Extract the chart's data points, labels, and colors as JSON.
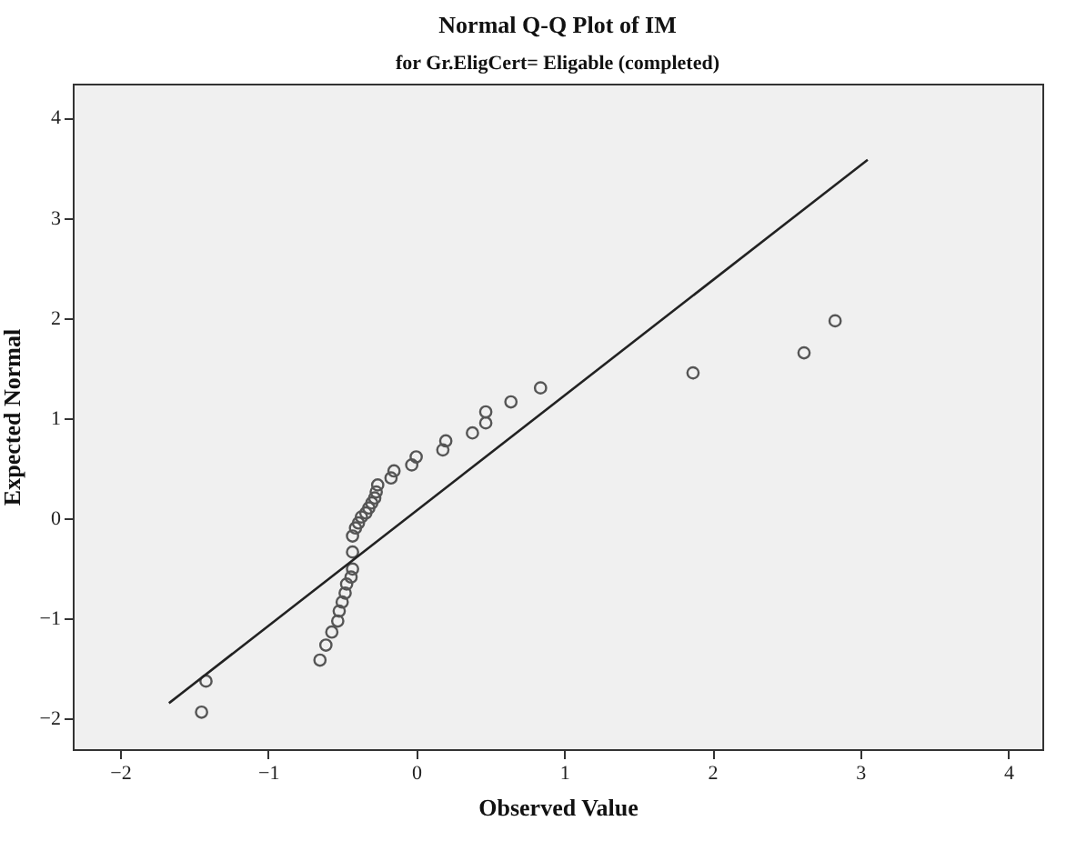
{
  "chart_data": {
    "type": "scatter",
    "title": "Normal Q-Q Plot of IM",
    "subtitle": "for Gr.EligCert= Eligable (completed)",
    "xlabel": "Observed Value",
    "ylabel": "Expected Normal",
    "xlim": [
      -2.32,
      4.23
    ],
    "ylim": [
      -2.31,
      4.34
    ],
    "xticks": [
      -2,
      -1,
      0,
      1,
      2,
      3,
      4
    ],
    "yticks": [
      -2,
      -1,
      0,
      1,
      2,
      3,
      4
    ],
    "grid": false,
    "marker": "circle",
    "series": [
      {
        "color": "#555555",
        "x": [
          -1.45,
          -1.42,
          -0.65,
          -0.61,
          -0.57,
          -0.53,
          -0.52,
          -0.5,
          -0.48,
          -0.47,
          -0.44,
          -0.43,
          -0.43,
          -0.43,
          -0.41,
          -0.39,
          -0.37,
          -0.34,
          -0.32,
          -0.3,
          -0.28,
          -0.27,
          -0.26,
          -0.17,
          -0.15,
          -0.03,
          0.0,
          0.18,
          0.2,
          0.38,
          0.47,
          0.47,
          0.64,
          0.84,
          1.87,
          2.62,
          2.83
        ],
        "values": [
          -1.94,
          -1.63,
          -1.42,
          -1.27,
          -1.14,
          -1.03,
          -0.93,
          -0.84,
          -0.75,
          -0.66,
          -0.59,
          -0.51,
          -0.34,
          -0.18,
          -0.1,
          -0.05,
          0.01,
          0.05,
          0.1,
          0.15,
          0.2,
          0.26,
          0.33,
          0.4,
          0.47,
          0.53,
          0.61,
          0.68,
          0.77,
          0.85,
          0.95,
          1.06,
          1.16,
          1.3,
          1.45,
          1.65,
          1.97
        ]
      },
      {
        "type": "line",
        "color": "#222222",
        "marker": "none",
        "line_style": "solid",
        "x": [
          -1.67,
          3.05
        ],
        "values": [
          -1.85,
          3.58
        ]
      }
    ]
  }
}
